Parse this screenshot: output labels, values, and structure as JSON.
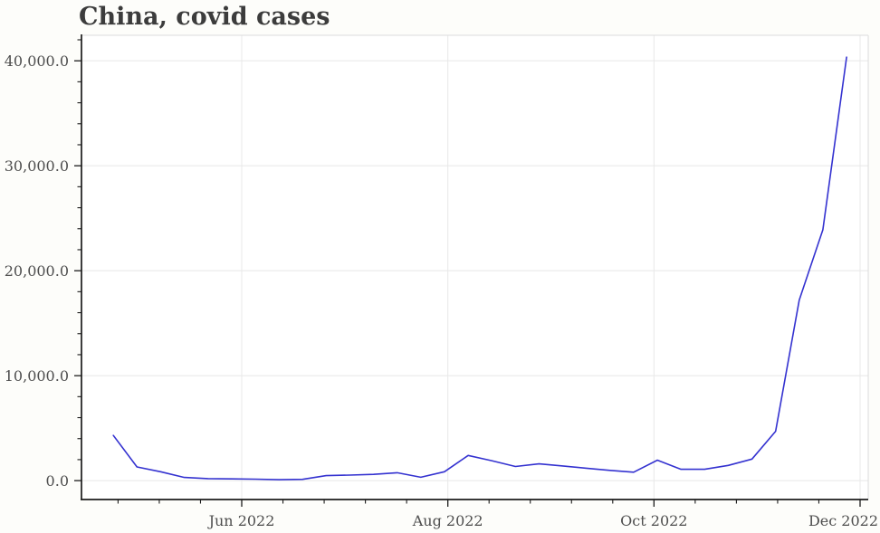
{
  "chart_data": {
    "type": "line",
    "title": "China, covid cases",
    "series": [
      {
        "name": "China, covid cases",
        "x": [
          "2022-04-24",
          "2022-05-01",
          "2022-05-08",
          "2022-05-15",
          "2022-05-22",
          "2022-05-29",
          "2022-06-05",
          "2022-06-12",
          "2022-06-19",
          "2022-06-26",
          "2022-07-03",
          "2022-07-10",
          "2022-07-17",
          "2022-07-24",
          "2022-07-31",
          "2022-08-07",
          "2022-08-14",
          "2022-08-21",
          "2022-08-28",
          "2022-09-04",
          "2022-09-11",
          "2022-09-18",
          "2022-09-25",
          "2022-10-02",
          "2022-10-09",
          "2022-10-16",
          "2022-10-23",
          "2022-10-30",
          "2022-11-06",
          "2022-11-13",
          "2022-11-20",
          "2022-11-27"
        ],
        "values": [
          4300,
          1300,
          850,
          300,
          190,
          170,
          140,
          90,
          120,
          480,
          530,
          600,
          750,
          320,
          850,
          2400,
          1900,
          1350,
          1600,
          1400,
          1180,
          980,
          800,
          1950,
          1080,
          1080,
          1450,
          2050,
          4700,
          17200,
          23900,
          40347
        ]
      }
    ],
    "x_axis": {
      "tick_labels": [
        "Jun 2022",
        "Aug 2022",
        "Oct 2022",
        "Dec 2022"
      ],
      "tick_dates": [
        "2022-06-01",
        "2022-08-01",
        "2022-10-01",
        "2022-12-01"
      ],
      "minor_ticks_per_interval": 4
    },
    "y_axis": {
      "tick_labels": [
        "0.0",
        "10,000.0",
        "20,000.0",
        "30,000.0",
        "40,000.0"
      ],
      "tick_values": [
        0,
        10000,
        20000,
        30000,
        40000
      ],
      "minor_step": 2000,
      "ylim": [
        -1800,
        42430
      ]
    },
    "grid": true,
    "legend_position": "none",
    "colors": {
      "line": "#3432d0",
      "grid": "#e8e8e8",
      "spine_dark": "#1b1b1b",
      "spine_light": "#dcdcdc",
      "tick_label": "#4e4e4e",
      "title": "#3c3c3c",
      "background": "#fdfdfa",
      "plot_background": "#ffffff"
    }
  }
}
